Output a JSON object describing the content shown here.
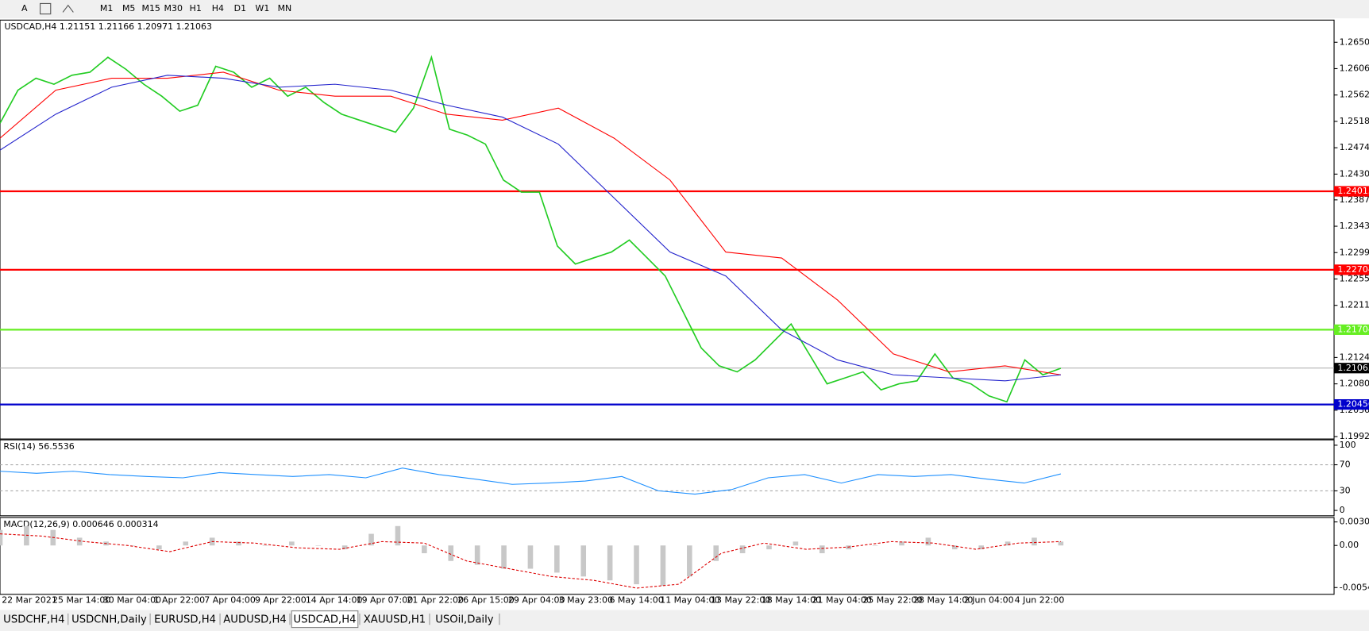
{
  "toolbar": {
    "text_tool": "A",
    "timeframes": [
      "M1",
      "M5",
      "M15",
      "M30",
      "H1",
      "H4",
      "D1",
      "W1",
      "MN"
    ]
  },
  "header": "USDCAD,H4  1.21151 1.21166 1.20971 1.21063",
  "price_panel": {
    "ylim": [
      1.1988,
      1.2687
    ],
    "yticks": [
      {
        "value": 1.265,
        "label": "1.26500"
      },
      {
        "value": 1.2606,
        "label": "1.26060"
      },
      {
        "value": 1.2562,
        "label": "1.25620"
      },
      {
        "value": 1.2518,
        "label": "1.25180"
      },
      {
        "value": 1.2474,
        "label": "1.24740"
      },
      {
        "value": 1.243,
        "label": "1.24300"
      },
      {
        "value": 1.2387,
        "label": "1.23870"
      },
      {
        "value": 1.2343,
        "label": "1.23430"
      },
      {
        "value": 1.2299,
        "label": "1.22990"
      },
      {
        "value": 1.2255,
        "label": "1.22550"
      },
      {
        "value": 1.2211,
        "label": "1.22110"
      },
      {
        "value": 1.2124,
        "label": "1.21240"
      },
      {
        "value": 1.208,
        "label": "1.20800"
      },
      {
        "value": 1.2036,
        "label": "1.20360"
      },
      {
        "value": 1.1992,
        "label": "1.19920"
      }
    ],
    "levels": [
      {
        "price": 1.24013,
        "color": "#ff0000"
      },
      {
        "price": 1.22704,
        "color": "#ff0000"
      },
      {
        "price": 1.21704,
        "color": "#66ee22"
      },
      {
        "price": 1.21063,
        "color": "#000000"
      },
      {
        "price": 1.20456,
        "color": "#0000cc"
      }
    ],
    "price": [
      1.2515,
      1.257,
      1.259,
      1.258,
      1.2595,
      1.26,
      1.2625,
      1.2605,
      1.258,
      1.256,
      1.2535,
      1.2545,
      1.261,
      1.26,
      1.2575,
      1.259,
      1.256,
      1.2575,
      1.255,
      1.253,
      1.252,
      1.251,
      1.25,
      1.254,
      1.2625,
      1.2505,
      1.2495,
      1.248,
      1.242,
      1.24,
      1.24,
      1.231,
      1.228,
      1.229,
      1.23,
      1.232,
      1.229,
      1.226,
      1.22,
      1.214,
      1.211,
      1.21,
      1.212,
      1.215,
      1.218,
      1.213,
      1.208,
      1.209,
      1.21,
      1.207,
      1.208,
      1.2085,
      1.213,
      1.209,
      1.208,
      1.206,
      1.205,
      1.212,
      1.2095,
      1.2106
    ],
    "ma_red": [
      1.249,
      1.257,
      1.259,
      1.259,
      1.26,
      1.257,
      1.256,
      1.256,
      1.253,
      1.252,
      1.254,
      1.249,
      1.242,
      1.23,
      1.229,
      1.222,
      1.213,
      1.21,
      1.211,
      1.2095
    ],
    "ma_blue": [
      1.247,
      1.253,
      1.2575,
      1.2595,
      1.259,
      1.2575,
      1.258,
      1.257,
      1.2545,
      1.2525,
      1.248,
      1.239,
      1.23,
      1.226,
      1.217,
      1.212,
      1.2095,
      1.209,
      1.2085,
      1.2095
    ]
  },
  "rsi_panel": {
    "label": "RSI(14) 56.5536",
    "ylim": [
      -8.2,
      108.2
    ],
    "yticks": [
      100,
      70,
      30,
      0
    ],
    "levels": [
      70,
      30
    ],
    "values": [
      60,
      57,
      60,
      55,
      52,
      50,
      58,
      55,
      52,
      55,
      50,
      65,
      55,
      48,
      40,
      42,
      45,
      52,
      30,
      25,
      32,
      50,
      55,
      42,
      55,
      52,
      55,
      48,
      42,
      56
    ]
  },
  "macd_panel": {
    "label": "MACD(12,26,9) 0.000646 0.000314",
    "ylim": [
      -0.0063,
      0.0036
    ],
    "yticks": [
      0.003035,
      {
        "value": 0,
        "label": "0.00"
      },
      -0.005429
    ],
    "histogram": [
      0.002,
      0.0025,
      0.002,
      0.001,
      0.0005,
      0,
      -0.0005,
      0.0005,
      0.001,
      0.0005,
      0,
      0.0005,
      0,
      -0.0005,
      0.0015,
      0.0025,
      -0.001,
      -0.002,
      -0.0025,
      -0.003,
      -0.003,
      -0.0035,
      -0.004,
      -0.0045,
      -0.005,
      -0.0052,
      -0.004,
      -0.002,
      -0.001,
      -0.0005,
      0.0005,
      -0.001,
      -0.0005,
      0,
      0.0005,
      0.001,
      -0.0005,
      -0.0005,
      0.0005,
      0.001,
      0.0005
    ],
    "signal": [
      0.0015,
      0.0012,
      0.0005,
      0,
      -0.0008,
      0.0005,
      0.0003,
      -0.0003,
      -0.0005,
      0.0005,
      0.0003,
      -0.002,
      -0.003,
      -0.004,
      -0.0045,
      -0.0055,
      -0.005,
      -0.001,
      0.0003,
      -0.0005,
      -0.0002,
      0.0005,
      0.0003,
      -0.0005,
      0.0003,
      0.0005
    ]
  },
  "time_axis": [
    "22 Mar 2021",
    "25 Mar 14:00",
    "30 Mar 04:00",
    "1 Apr 22:00",
    "7 Apr 04:00",
    "9 Apr 22:00",
    "14 Apr 14:00",
    "19 Apr 07:00",
    "21 Apr 22:00",
    "26 Apr 15:00",
    "29 Apr 04:00",
    "3 May 23:00",
    "6 May 14:00",
    "11 May 04:00",
    "13 May 22:00",
    "18 May 14:00",
    "21 May 04:00",
    "25 May 22:00",
    "28 May 14:00",
    "2 Jun 04:00",
    "4 Jun 22:00"
  ],
  "tabs": [
    "USDCHF,H4",
    "USDCNH,Daily",
    "EURUSD,H4",
    "AUDUSD,H4",
    "USDCAD,H4",
    "XAUUSD,H1",
    "USOil,Daily"
  ],
  "active_tab": 4
}
